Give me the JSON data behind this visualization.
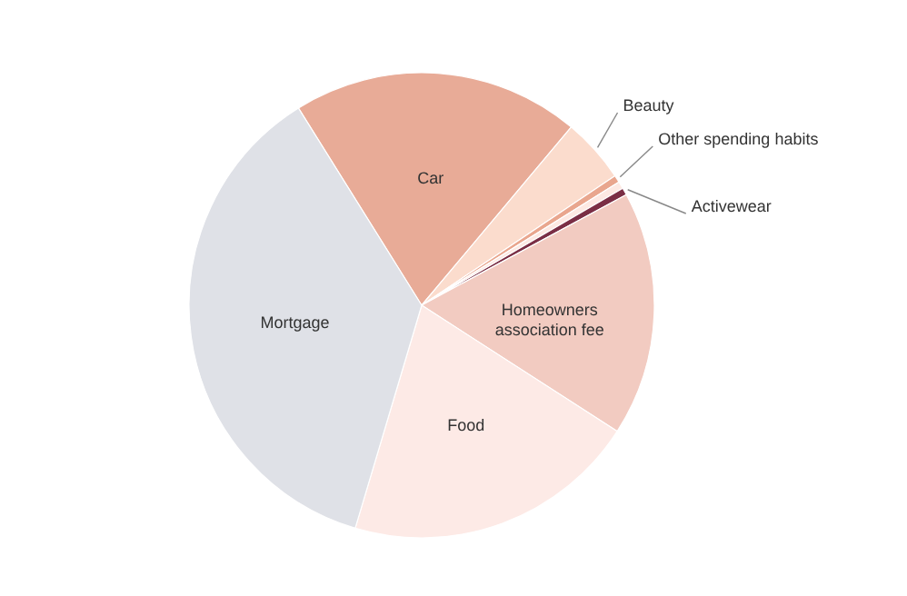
{
  "chart_data": {
    "type": "pie",
    "categories": [
      "Car",
      "Beauty",
      "Other spending habits",
      null,
      "Activewear",
      "Homeowners association fee",
      "Food",
      "Mortgage"
    ],
    "values": [
      20,
      4.5,
      0.5,
      0.5,
      0.5,
      17,
      20.5,
      36.5
    ],
    "colors": [
      "#e8ab97",
      "#fbdccd",
      "#e9a68e",
      "#fde9e3",
      "#7a2e45",
      "#f2cbc1",
      "#fdeae6",
      "#dfe1e7"
    ]
  }
}
